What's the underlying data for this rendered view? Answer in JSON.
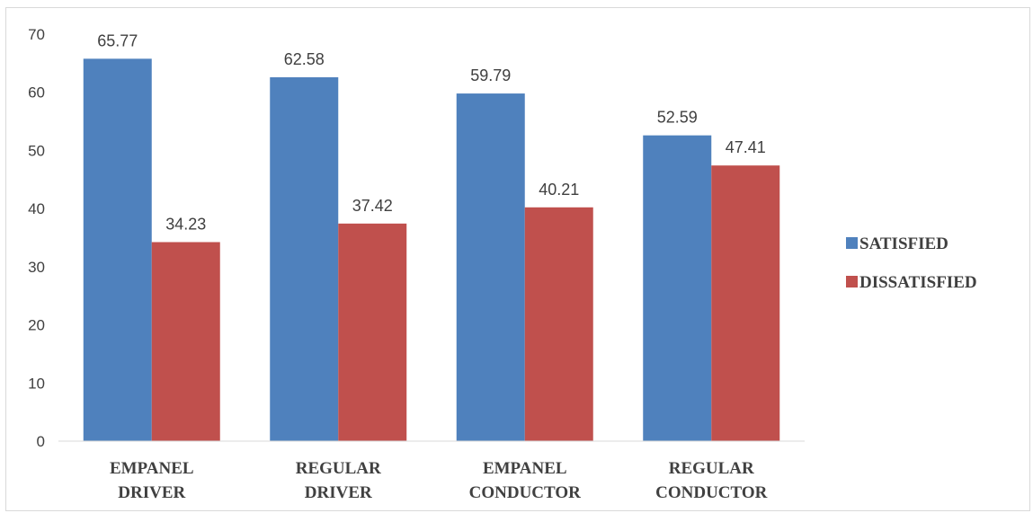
{
  "chart_data": {
    "type": "bar",
    "categories": [
      [
        "EMPANEL",
        "DRIVER"
      ],
      [
        "REGULAR",
        "DRIVER"
      ],
      [
        "EMPANEL",
        "CONDUCTOR"
      ],
      [
        "REGULAR",
        "CONDUCTOR"
      ]
    ],
    "series": [
      {
        "name": "SATISFIED",
        "color": "#4f81bd",
        "values": [
          65.77,
          62.58,
          59.79,
          52.59
        ]
      },
      {
        "name": "DISSATISFIED",
        "color": "#c0504d",
        "values": [
          34.23,
          37.42,
          40.21,
          47.41
        ]
      }
    ],
    "ylim": [
      0,
      70
    ],
    "yticks": [
      0,
      10,
      20,
      30,
      40,
      50,
      60,
      70
    ],
    "grid": false,
    "legend": "right",
    "data_labels": true
  }
}
